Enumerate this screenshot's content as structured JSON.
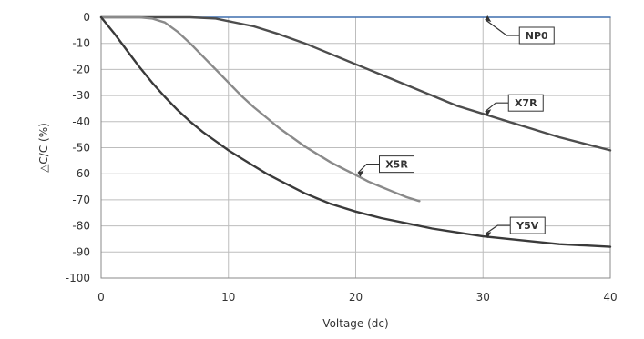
{
  "chart_data": {
    "type": "line",
    "title": "",
    "xlabel": "Voltage (dc)",
    "ylabel": "△C/C (%)",
    "xlim": [
      0,
      40
    ],
    "ylim": [
      -100,
      0
    ],
    "x_ticks": [
      0,
      10,
      20,
      30,
      40
    ],
    "y_ticks": [
      0,
      -10,
      -20,
      -30,
      -40,
      -50,
      -60,
      -70,
      -80,
      -90,
      -100
    ],
    "x_tick_labels": [
      "0",
      "10",
      "20",
      "30",
      "40"
    ],
    "y_tick_labels": [
      "0",
      "-10",
      "-20",
      "-30",
      "-40",
      "-50",
      "-60",
      "-70",
      "-80",
      "-90",
      "-100"
    ],
    "grid": true,
    "series": [
      {
        "name": "NP0",
        "color": "#3f6fae",
        "points": [
          [
            0,
            0
          ],
          [
            40,
            0
          ]
        ],
        "label_at": [
          30,
          0
        ]
      },
      {
        "name": "X7R",
        "color": "#4d4d4d",
        "points": [
          [
            0,
            0
          ],
          [
            5,
            0
          ],
          [
            7,
            0
          ],
          [
            9,
            -0.5
          ],
          [
            10,
            -1.5
          ],
          [
            12,
            -3.5
          ],
          [
            14,
            -6.5
          ],
          [
            16,
            -10
          ],
          [
            18,
            -14
          ],
          [
            20,
            -18
          ],
          [
            22,
            -22
          ],
          [
            24,
            -26
          ],
          [
            26,
            -30
          ],
          [
            28,
            -34
          ],
          [
            30,
            -37
          ],
          [
            32,
            -40
          ],
          [
            34,
            -43
          ],
          [
            36,
            -46
          ],
          [
            38,
            -48.5
          ],
          [
            40,
            -51
          ]
        ],
        "label_at": [
          30,
          -37
        ]
      },
      {
        "name": "X5R",
        "color": "#8a8a8a",
        "points": [
          [
            0,
            0
          ],
          [
            3,
            0
          ],
          [
            4,
            -0.5
          ],
          [
            5,
            -2
          ],
          [
            6,
            -5.5
          ],
          [
            7,
            -10
          ],
          [
            8,
            -15
          ],
          [
            9,
            -20
          ],
          [
            10,
            -25
          ],
          [
            11,
            -30
          ],
          [
            12,
            -34.5
          ],
          [
            13,
            -38.5
          ],
          [
            14,
            -42.5
          ],
          [
            15,
            -46
          ],
          [
            16,
            -49.5
          ],
          [
            17,
            -52.5
          ],
          [
            18,
            -55.5
          ],
          [
            19,
            -58
          ],
          [
            20,
            -60.5
          ],
          [
            21,
            -63
          ],
          [
            22,
            -65
          ],
          [
            23,
            -67
          ],
          [
            24,
            -69
          ],
          [
            25,
            -70.5
          ]
        ],
        "label_at": [
          20,
          -60.5
        ]
      },
      {
        "name": "Y5V",
        "color": "#3a3a3a",
        "points": [
          [
            0,
            0
          ],
          [
            1,
            -6
          ],
          [
            2,
            -12.5
          ],
          [
            3,
            -19
          ],
          [
            4,
            -25
          ],
          [
            5,
            -30.5
          ],
          [
            6,
            -35.5
          ],
          [
            7,
            -40
          ],
          [
            8,
            -44
          ],
          [
            9,
            -47.5
          ],
          [
            10,
            -51
          ],
          [
            11,
            -54
          ],
          [
            12,
            -57
          ],
          [
            13,
            -60
          ],
          [
            14,
            -62.5
          ],
          [
            15,
            -65
          ],
          [
            16,
            -67.5
          ],
          [
            17,
            -69.5
          ],
          [
            18,
            -71.5
          ],
          [
            19,
            -73
          ],
          [
            20,
            -74.5
          ],
          [
            22,
            -77
          ],
          [
            24,
            -79
          ],
          [
            26,
            -81
          ],
          [
            28,
            -82.5
          ],
          [
            30,
            -84
          ],
          [
            32,
            -85
          ],
          [
            34,
            -86
          ],
          [
            36,
            -87
          ],
          [
            38,
            -87.5
          ],
          [
            40,
            -88
          ]
        ],
        "label_at": [
          30,
          -84
        ]
      }
    ]
  }
}
